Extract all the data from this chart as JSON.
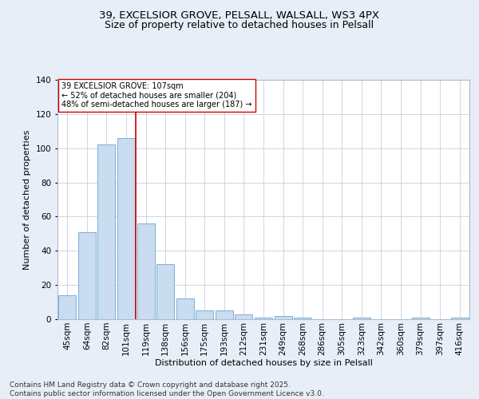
{
  "title_line1": "39, EXCELSIOR GROVE, PELSALL, WALSALL, WS3 4PX",
  "title_line2": "Size of property relative to detached houses in Pelsall",
  "xlabel": "Distribution of detached houses by size in Pelsall",
  "ylabel": "Number of detached properties",
  "categories": [
    "45sqm",
    "64sqm",
    "82sqm",
    "101sqm",
    "119sqm",
    "138sqm",
    "156sqm",
    "175sqm",
    "193sqm",
    "212sqm",
    "231sqm",
    "249sqm",
    "268sqm",
    "286sqm",
    "305sqm",
    "323sqm",
    "342sqm",
    "360sqm",
    "379sqm",
    "397sqm",
    "416sqm"
  ],
  "values": [
    14,
    51,
    102,
    106,
    56,
    32,
    12,
    5,
    5,
    3,
    1,
    2,
    1,
    0,
    0,
    1,
    0,
    0,
    1,
    0,
    1
  ],
  "bar_color": "#c9dcf0",
  "bar_edge_color": "#7bafd4",
  "vline_x_idx": 3.5,
  "vline_color": "#cc0000",
  "annotation_text": "39 EXCELSIOR GROVE: 107sqm\n← 52% of detached houses are smaller (204)\n48% of semi-detached houses are larger (187) →",
  "annotation_box_color": "#ffffff",
  "annotation_box_edge_color": "#cc0000",
  "ylim": [
    0,
    140
  ],
  "yticks": [
    0,
    20,
    40,
    60,
    80,
    100,
    120,
    140
  ],
  "footer": "Contains HM Land Registry data © Crown copyright and database right 2025.\nContains public sector information licensed under the Open Government Licence v3.0.",
  "bg_color": "#e8eef8",
  "plot_bg_color": "#ffffff",
  "grid_color": "#c8d0e0",
  "title_fontsize": 9.5,
  "subtitle_fontsize": 9,
  "axis_label_fontsize": 8,
  "tick_fontsize": 7.5,
  "footer_fontsize": 6.5,
  "annotation_fontsize": 7
}
